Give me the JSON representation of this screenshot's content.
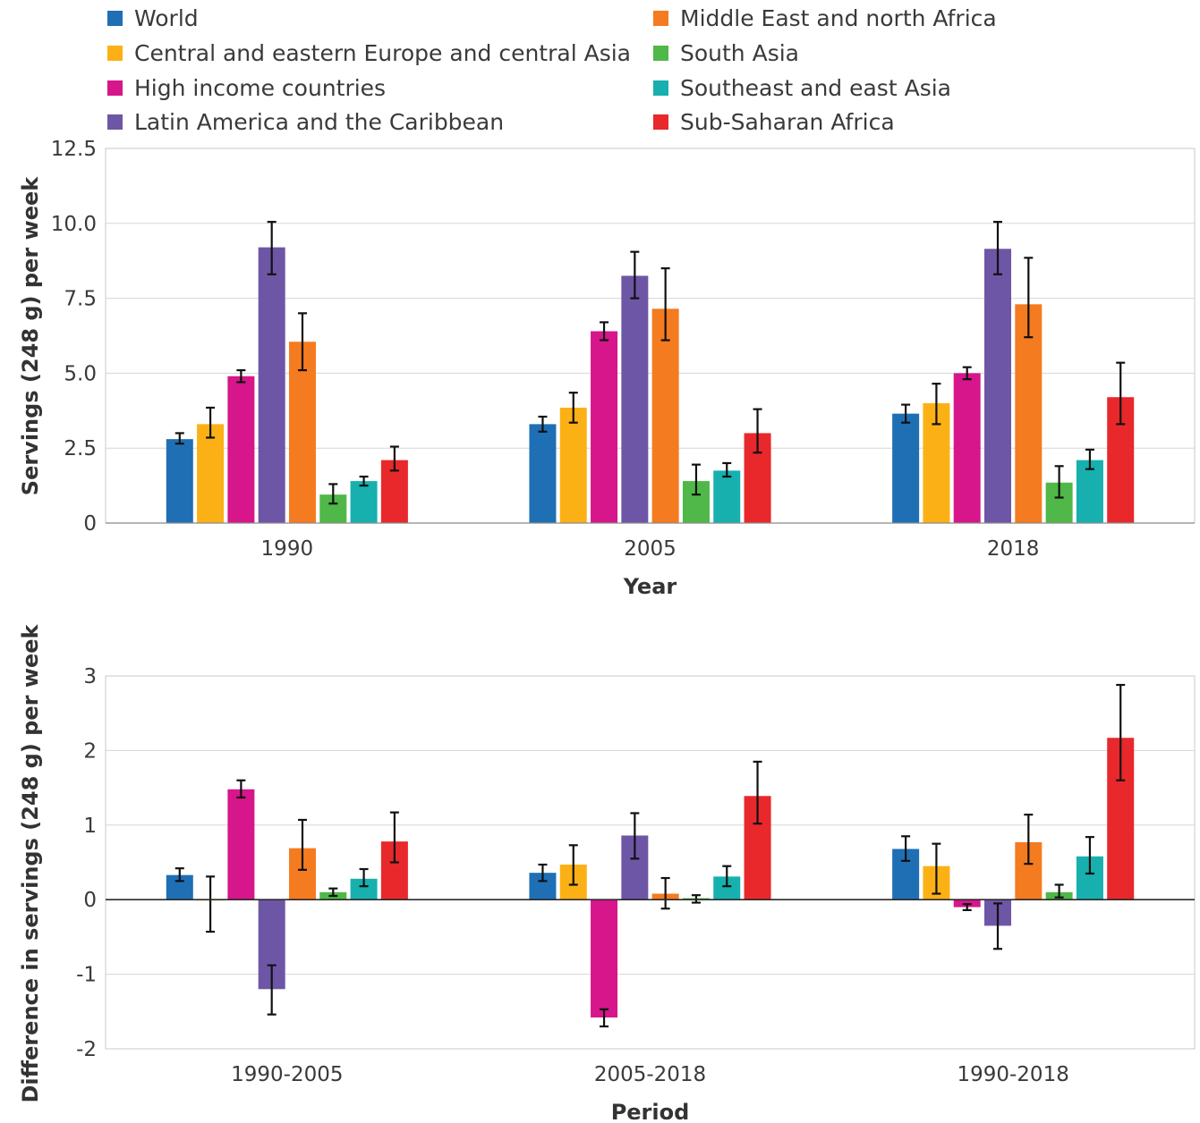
{
  "chart_data": [
    {
      "type": "bar",
      "categories": [
        "1990",
        "2005",
        "2018"
      ],
      "xlabel": "Year",
      "ylabel": "Servings (248 g) per week",
      "ylim": [
        0,
        12.5
      ],
      "yticks": [
        "0",
        "2.5",
        "5.0",
        "7.5",
        "10.0",
        "12.5"
      ],
      "grid": true,
      "legend": "top",
      "error_bars": true,
      "series": [
        {
          "name": "World",
          "color": "#1f6fb5",
          "values": [
            2.8,
            3.3,
            3.65
          ],
          "lower": [
            2.65,
            3.05,
            3.35
          ],
          "upper": [
            3.0,
            3.55,
            3.95
          ]
        },
        {
          "name": "Central and eastern Europe and central Asia",
          "color": "#fbb116",
          "values": [
            3.3,
            3.85,
            4.0
          ],
          "lower": [
            2.85,
            3.35,
            3.3
          ],
          "upper": [
            3.85,
            4.35,
            4.65
          ]
        },
        {
          "name": "High income countries",
          "color": "#d6168a",
          "values": [
            4.9,
            6.4,
            5.0
          ],
          "lower": [
            4.7,
            6.1,
            4.8
          ],
          "upper": [
            5.1,
            6.7,
            5.2
          ]
        },
        {
          "name": "Latin America and the Caribbean",
          "color": "#6e56a7",
          "values": [
            9.2,
            8.25,
            9.15
          ],
          "lower": [
            8.3,
            7.5,
            8.3
          ],
          "upper": [
            10.05,
            9.05,
            10.05
          ]
        },
        {
          "name": "Middle East and north Africa",
          "color": "#f47b20",
          "values": [
            6.05,
            7.15,
            7.3
          ],
          "lower": [
            5.1,
            6.1,
            6.2
          ],
          "upper": [
            7.0,
            8.5,
            8.85
          ]
        },
        {
          "name": "South Asia",
          "color": "#4fb848",
          "values": [
            0.95,
            1.4,
            1.35
          ],
          "lower": [
            0.65,
            0.95,
            0.85
          ],
          "upper": [
            1.3,
            1.95,
            1.9
          ]
        },
        {
          "name": "Southeast and east Asia",
          "color": "#17b0ae",
          "values": [
            1.4,
            1.75,
            2.1
          ],
          "lower": [
            1.25,
            1.55,
            1.8
          ],
          "upper": [
            1.55,
            2.0,
            2.45
          ]
        },
        {
          "name": "Sub-Saharan Africa",
          "color": "#e8282b",
          "values": [
            2.1,
            3.0,
            4.2
          ],
          "lower": [
            1.75,
            2.35,
            3.3
          ],
          "upper": [
            2.55,
            3.8,
            5.35
          ]
        }
      ]
    },
    {
      "type": "bar",
      "categories": [
        "1990-2005",
        "2005-2018",
        "1990-2018"
      ],
      "xlabel": "Period",
      "ylabel": "Difference in servings (248 g) per week",
      "ylim": [
        -2,
        3
      ],
      "yticks": [
        "-2",
        "-1",
        "0",
        "1",
        "2",
        "3"
      ],
      "grid": true,
      "legend": "none",
      "error_bars": true,
      "series": [
        {
          "name": "World",
          "color": "#1f6fb5",
          "values": [
            0.33,
            0.36,
            0.68
          ],
          "lower": [
            0.25,
            0.25,
            0.52
          ],
          "upper": [
            0.42,
            0.47,
            0.85
          ]
        },
        {
          "name": "Central and eastern Europe and central Asia",
          "color": "#fbb116",
          "values": [
            0.0,
            0.47,
            0.45
          ],
          "lower": [
            -0.43,
            0.2,
            0.08
          ],
          "upper": [
            0.31,
            0.73,
            0.75
          ]
        },
        {
          "name": "High income countries",
          "color": "#d6168a",
          "values": [
            1.48,
            -1.58,
            -0.1
          ],
          "lower": [
            1.37,
            -1.7,
            -0.14
          ],
          "upper": [
            1.6,
            -1.47,
            -0.06
          ]
        },
        {
          "name": "Latin America and the Caribbean",
          "color": "#6e56a7",
          "values": [
            -1.2,
            0.86,
            -0.35
          ],
          "lower": [
            -1.54,
            0.55,
            -0.66
          ],
          "upper": [
            -0.88,
            1.16,
            -0.05
          ]
        },
        {
          "name": "Middle East and north Africa",
          "color": "#f47b20",
          "values": [
            0.69,
            0.08,
            0.77
          ],
          "lower": [
            0.4,
            -0.12,
            0.48
          ],
          "upper": [
            1.07,
            0.29,
            1.14
          ]
        },
        {
          "name": "South Asia",
          "color": "#4fb848",
          "values": [
            0.1,
            0.02,
            0.1
          ],
          "lower": [
            0.05,
            -0.04,
            0.03
          ],
          "upper": [
            0.15,
            0.06,
            0.2
          ]
        },
        {
          "name": "Southeast and east Asia",
          "color": "#17b0ae",
          "values": [
            0.28,
            0.31,
            0.58
          ],
          "lower": [
            0.18,
            0.18,
            0.35
          ],
          "upper": [
            0.41,
            0.45,
            0.84
          ]
        },
        {
          "name": "Sub-Saharan Africa",
          "color": "#e8282b",
          "values": [
            0.78,
            1.39,
            2.17
          ],
          "lower": [
            0.5,
            1.02,
            1.6
          ],
          "upper": [
            1.17,
            1.85,
            2.88
          ]
        }
      ]
    }
  ]
}
